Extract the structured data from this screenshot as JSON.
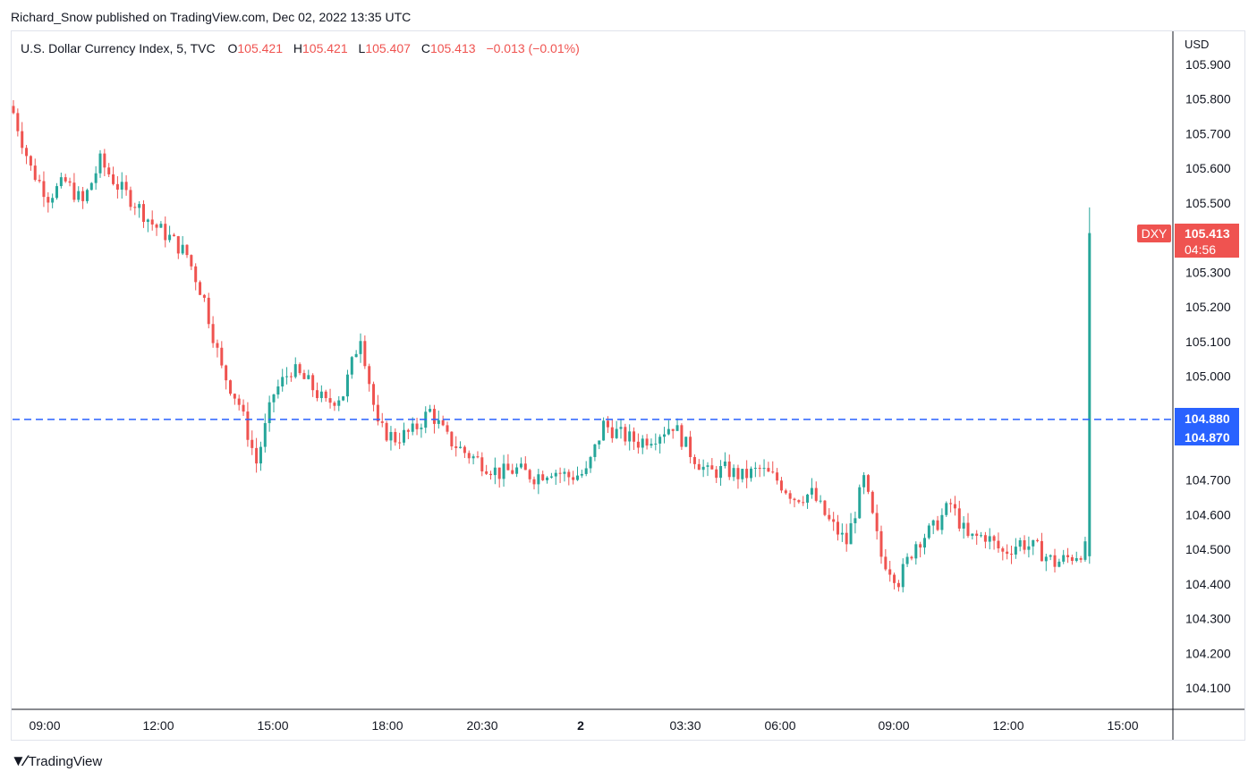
{
  "header": {
    "published_line": "Richard_Snow published on TradingView.com, Dec 02, 2022 13:35 UTC"
  },
  "legend": {
    "symbol": "U.S. Dollar Currency Index, 5, TVC",
    "open_label": "O",
    "open": "105.421",
    "high_label": "H",
    "high": "105.421",
    "low_label": "L",
    "low": "105.407",
    "close_label": "C",
    "close": "105.413",
    "change": "−0.013 (−0.01%)"
  },
  "axis": {
    "currency": "USD"
  },
  "badges": {
    "ticker": "DXY",
    "last_price": "105.413",
    "countdown": "04:56",
    "level_upper": "104.880",
    "level_lower": "104.870"
  },
  "footer": {
    "brand": "TradingView"
  },
  "colors": {
    "up": "#26a69a",
    "down": "#ef5350",
    "level_line": "#2962ff",
    "price_badge": "#ef5350"
  },
  "chart_data": {
    "type": "candlestick",
    "title": "",
    "y_ticks": [
      "105.900",
      "105.800",
      "105.700",
      "105.600",
      "105.500",
      "105.300",
      "105.200",
      "105.100",
      "105.000",
      "104.700",
      "104.600",
      "104.500",
      "104.400",
      "104.300",
      "104.200",
      "104.100"
    ],
    "x_ticks": [
      "09:00",
      "12:00",
      "15:00",
      "18:00",
      "20:30",
      "2",
      "03:30",
      "06:00",
      "09:00",
      "12:00",
      "15:00"
    ],
    "ylim": [
      104.05,
      105.95
    ],
    "horizontal_level": 104.875,
    "last_price": 105.413,
    "close_path": [
      {
        "t": 0,
        "v": 105.76
      },
      {
        "t": 4,
        "v": 105.6
      },
      {
        "t": 8,
        "v": 105.52
      },
      {
        "t": 12,
        "v": 105.56
      },
      {
        "t": 16,
        "v": 105.5
      },
      {
        "t": 20,
        "v": 105.62
      },
      {
        "t": 24,
        "v": 105.55
      },
      {
        "t": 28,
        "v": 105.5
      },
      {
        "t": 32,
        "v": 105.44
      },
      {
        "t": 36,
        "v": 105.4
      },
      {
        "t": 40,
        "v": 105.35
      },
      {
        "t": 44,
        "v": 105.22
      },
      {
        "t": 48,
        "v": 105.02
      },
      {
        "t": 52,
        "v": 104.92
      },
      {
        "t": 56,
        "v": 104.75
      },
      {
        "t": 60,
        "v": 104.95
      },
      {
        "t": 64,
        "v": 105.02
      },
      {
        "t": 68,
        "v": 104.98
      },
      {
        "t": 72,
        "v": 104.92
      },
      {
        "t": 76,
        "v": 104.95
      },
      {
        "t": 80,
        "v": 105.12
      },
      {
        "t": 84,
        "v": 104.85
      },
      {
        "t": 88,
        "v": 104.82
      },
      {
        "t": 92,
        "v": 104.84
      },
      {
        "t": 96,
        "v": 104.9
      },
      {
        "t": 100,
        "v": 104.82
      },
      {
        "t": 104,
        "v": 104.78
      },
      {
        "t": 108,
        "v": 104.75
      },
      {
        "t": 112,
        "v": 104.72
      },
      {
        "t": 116,
        "v": 104.73
      },
      {
        "t": 120,
        "v": 104.71
      },
      {
        "t": 124,
        "v": 104.73
      },
      {
        "t": 128,
        "v": 104.71
      },
      {
        "t": 132,
        "v": 104.72
      },
      {
        "t": 136,
        "v": 104.86
      },
      {
        "t": 140,
        "v": 104.83
      },
      {
        "t": 144,
        "v": 104.81
      },
      {
        "t": 148,
        "v": 104.83
      },
      {
        "t": 152,
        "v": 104.86
      },
      {
        "t": 156,
        "v": 104.78
      },
      {
        "t": 160,
        "v": 104.72
      },
      {
        "t": 164,
        "v": 104.73
      },
      {
        "t": 168,
        "v": 104.71
      },
      {
        "t": 172,
        "v": 104.73
      },
      {
        "t": 176,
        "v": 104.7
      },
      {
        "t": 180,
        "v": 104.65
      },
      {
        "t": 184,
        "v": 104.66
      },
      {
        "t": 188,
        "v": 104.58
      },
      {
        "t": 192,
        "v": 104.52
      },
      {
        "t": 196,
        "v": 104.7
      },
      {
        "t": 200,
        "v": 104.48
      },
      {
        "t": 204,
        "v": 104.41
      },
      {
        "t": 208,
        "v": 104.52
      },
      {
        "t": 212,
        "v": 104.56
      },
      {
        "t": 216,
        "v": 104.63
      },
      {
        "t": 220,
        "v": 104.53
      },
      {
        "t": 224,
        "v": 104.54
      },
      {
        "t": 228,
        "v": 104.49
      },
      {
        "t": 232,
        "v": 104.52
      },
      {
        "t": 236,
        "v": 104.5
      },
      {
        "t": 240,
        "v": 104.46
      },
      {
        "t": 244,
        "v": 104.48
      },
      {
        "t": 247,
        "v": 104.5
      },
      {
        "t": 248,
        "v": 105.413
      }
    ]
  }
}
